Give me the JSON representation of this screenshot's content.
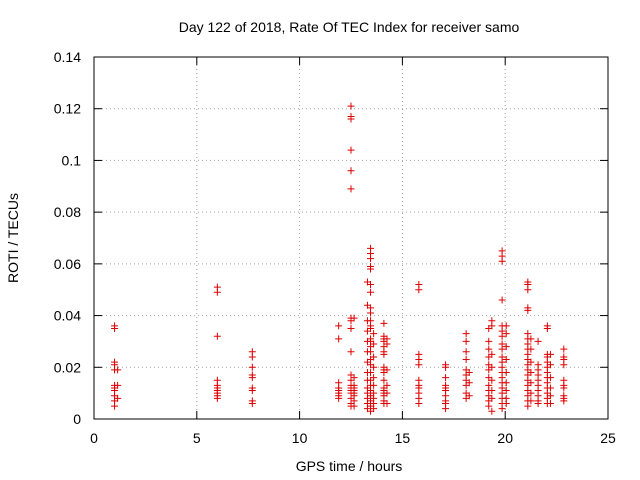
{
  "chart_data": {
    "type": "scatter",
    "title": "Day 122 of 2018, Rate Of TEC Index for receiver samo",
    "xlabel": "GPS time / hours",
    "ylabel": "ROTI / TECUs",
    "xlim": [
      0,
      25
    ],
    "ylim": [
      0,
      0.14
    ],
    "x_ticks": [
      "0",
      "5",
      "10",
      "15",
      "20",
      "25"
    ],
    "y_ticks": [
      "0",
      "0.02",
      "0.04",
      "0.06",
      "0.08",
      "0.1",
      "0.12",
      "0.14"
    ],
    "grid": true,
    "marker": "+",
    "series": [
      {
        "color": "#e00000",
        "points": [
          [
            1.0,
            0.036
          ],
          [
            1.0,
            0.035
          ],
          [
            1.0,
            0.022
          ],
          [
            1.0,
            0.021
          ],
          [
            1.0,
            0.019
          ],
          [
            1.0,
            0.013
          ],
          [
            1.0,
            0.012
          ],
          [
            1.0,
            0.011
          ],
          [
            1.0,
            0.009
          ],
          [
            1.0,
            0.007
          ],
          [
            1.0,
            0.005
          ],
          [
            1.15,
            0.019
          ],
          [
            1.15,
            0.013
          ],
          [
            1.15,
            0.008
          ],
          [
            6.0,
            0.051
          ],
          [
            6.0,
            0.049
          ],
          [
            6.0,
            0.032
          ],
          [
            6.0,
            0.015
          ],
          [
            6.0,
            0.013
          ],
          [
            6.0,
            0.012
          ],
          [
            6.0,
            0.011
          ],
          [
            6.0,
            0.01
          ],
          [
            6.0,
            0.009
          ],
          [
            6.0,
            0.008
          ],
          [
            7.7,
            0.026
          ],
          [
            7.7,
            0.024
          ],
          [
            7.7,
            0.02
          ],
          [
            7.7,
            0.017
          ],
          [
            7.7,
            0.016
          ],
          [
            7.7,
            0.012
          ],
          [
            7.7,
            0.011
          ],
          [
            7.7,
            0.007
          ],
          [
            7.7,
            0.006
          ],
          [
            11.9,
            0.036
          ],
          [
            11.9,
            0.031
          ],
          [
            11.9,
            0.014
          ],
          [
            11.9,
            0.012
          ],
          [
            11.9,
            0.011
          ],
          [
            11.9,
            0.01
          ],
          [
            11.9,
            0.009
          ],
          [
            11.9,
            0.008
          ],
          [
            12.5,
            0.121
          ],
          [
            12.5,
            0.117
          ],
          [
            12.5,
            0.116
          ],
          [
            12.5,
            0.104
          ],
          [
            12.5,
            0.096
          ],
          [
            12.5,
            0.089
          ],
          [
            12.5,
            0.039
          ],
          [
            12.5,
            0.038
          ],
          [
            12.5,
            0.035
          ],
          [
            12.5,
            0.026
          ],
          [
            12.5,
            0.017
          ],
          [
            12.5,
            0.015
          ],
          [
            12.5,
            0.013
          ],
          [
            12.5,
            0.012
          ],
          [
            12.5,
            0.011
          ],
          [
            12.5,
            0.01
          ],
          [
            12.5,
            0.008
          ],
          [
            12.5,
            0.006
          ],
          [
            12.5,
            0.005
          ],
          [
            12.65,
            0.039
          ],
          [
            12.65,
            0.016
          ],
          [
            12.65,
            0.013
          ],
          [
            12.65,
            0.012
          ],
          [
            12.65,
            0.011
          ],
          [
            12.65,
            0.01
          ],
          [
            12.65,
            0.009
          ],
          [
            12.65,
            0.007
          ],
          [
            12.65,
            0.005
          ],
          [
            13.3,
            0.053
          ],
          [
            13.3,
            0.044
          ],
          [
            13.3,
            0.038
          ],
          [
            13.3,
            0.034
          ],
          [
            13.3,
            0.03
          ],
          [
            13.3,
            0.026
          ],
          [
            13.3,
            0.022
          ],
          [
            13.3,
            0.018
          ],
          [
            13.3,
            0.015
          ],
          [
            13.3,
            0.012
          ],
          [
            13.3,
            0.01
          ],
          [
            13.3,
            0.008
          ],
          [
            13.3,
            0.006
          ],
          [
            13.3,
            0.004
          ],
          [
            13.45,
            0.066
          ],
          [
            13.45,
            0.064
          ],
          [
            13.45,
            0.062
          ],
          [
            13.45,
            0.059
          ],
          [
            13.45,
            0.058
          ],
          [
            13.45,
            0.052
          ],
          [
            13.45,
            0.049
          ],
          [
            13.45,
            0.043
          ],
          [
            13.45,
            0.041
          ],
          [
            13.45,
            0.038
          ],
          [
            13.45,
            0.036
          ],
          [
            13.45,
            0.035
          ],
          [
            13.45,
            0.031
          ],
          [
            13.45,
            0.03
          ],
          [
            13.45,
            0.028
          ],
          [
            13.45,
            0.026
          ],
          [
            13.45,
            0.023
          ],
          [
            13.45,
            0.021
          ],
          [
            13.45,
            0.018
          ],
          [
            13.45,
            0.015
          ],
          [
            13.45,
            0.013
          ],
          [
            13.45,
            0.011
          ],
          [
            13.45,
            0.009
          ],
          [
            13.45,
            0.007
          ],
          [
            13.45,
            0.005
          ],
          [
            13.45,
            0.003
          ],
          [
            13.6,
            0.033
          ],
          [
            13.6,
            0.029
          ],
          [
            13.6,
            0.024
          ],
          [
            13.6,
            0.02
          ],
          [
            13.6,
            0.016
          ],
          [
            13.6,
            0.013
          ],
          [
            13.6,
            0.01
          ],
          [
            13.6,
            0.008
          ],
          [
            13.6,
            0.006
          ],
          [
            13.6,
            0.004
          ],
          [
            14.1,
            0.037
          ],
          [
            14.1,
            0.032
          ],
          [
            14.1,
            0.031
          ],
          [
            14.1,
            0.03
          ],
          [
            14.1,
            0.028
          ],
          [
            14.1,
            0.026
          ],
          [
            14.1,
            0.025
          ],
          [
            14.1,
            0.02
          ],
          [
            14.1,
            0.019
          ],
          [
            14.1,
            0.018
          ],
          [
            14.1,
            0.015
          ],
          [
            14.1,
            0.012
          ],
          [
            14.1,
            0.011
          ],
          [
            14.1,
            0.01
          ],
          [
            14.1,
            0.009
          ],
          [
            14.1,
            0.007
          ],
          [
            14.1,
            0.006
          ],
          [
            14.25,
            0.031
          ],
          [
            14.25,
            0.029
          ],
          [
            14.25,
            0.019
          ],
          [
            14.25,
            0.013
          ],
          [
            14.25,
            0.01
          ],
          [
            14.25,
            0.006
          ],
          [
            15.8,
            0.052
          ],
          [
            15.8,
            0.05
          ],
          [
            15.8,
            0.025
          ],
          [
            15.8,
            0.023
          ],
          [
            15.8,
            0.021
          ],
          [
            15.8,
            0.015
          ],
          [
            15.8,
            0.013
          ],
          [
            15.8,
            0.012
          ],
          [
            15.8,
            0.01
          ],
          [
            15.8,
            0.008
          ],
          [
            15.8,
            0.006
          ],
          [
            17.1,
            0.021
          ],
          [
            17.1,
            0.02
          ],
          [
            17.1,
            0.016
          ],
          [
            17.1,
            0.013
          ],
          [
            17.1,
            0.012
          ],
          [
            17.1,
            0.011
          ],
          [
            17.1,
            0.009
          ],
          [
            17.1,
            0.007
          ],
          [
            17.1,
            0.006
          ],
          [
            17.1,
            0.004
          ],
          [
            18.1,
            0.033
          ],
          [
            18.1,
            0.03
          ],
          [
            18.1,
            0.026
          ],
          [
            18.1,
            0.023
          ],
          [
            18.1,
            0.019
          ],
          [
            18.1,
            0.017
          ],
          [
            18.1,
            0.015
          ],
          [
            18.1,
            0.013
          ],
          [
            18.1,
            0.01
          ],
          [
            18.1,
            0.008
          ],
          [
            18.25,
            0.018
          ],
          [
            18.25,
            0.014
          ],
          [
            18.25,
            0.009
          ],
          [
            19.2,
            0.035
          ],
          [
            19.2,
            0.03
          ],
          [
            19.2,
            0.027
          ],
          [
            19.2,
            0.024
          ],
          [
            19.2,
            0.021
          ],
          [
            19.2,
            0.019
          ],
          [
            19.2,
            0.016
          ],
          [
            19.2,
            0.013
          ],
          [
            19.2,
            0.011
          ],
          [
            19.2,
            0.009
          ],
          [
            19.2,
            0.007
          ],
          [
            19.2,
            0.005
          ],
          [
            19.35,
            0.038
          ],
          [
            19.35,
            0.036
          ],
          [
            19.35,
            0.025
          ],
          [
            19.35,
            0.02
          ],
          [
            19.35,
            0.015
          ],
          [
            19.35,
            0.011
          ],
          [
            19.35,
            0.008
          ],
          [
            19.35,
            0.003
          ],
          [
            19.85,
            0.065
          ],
          [
            19.85,
            0.063
          ],
          [
            19.85,
            0.061
          ],
          [
            19.85,
            0.046
          ],
          [
            19.85,
            0.036
          ],
          [
            19.85,
            0.034
          ],
          [
            19.85,
            0.032
          ],
          [
            19.85,
            0.029
          ],
          [
            19.85,
            0.027
          ],
          [
            19.85,
            0.024
          ],
          [
            19.85,
            0.022
          ],
          [
            19.85,
            0.02
          ],
          [
            19.85,
            0.018
          ],
          [
            19.85,
            0.016
          ],
          [
            19.85,
            0.014
          ],
          [
            19.85,
            0.012
          ],
          [
            19.85,
            0.01
          ],
          [
            19.85,
            0.008
          ],
          [
            19.85,
            0.006
          ],
          [
            19.85,
            0.004
          ],
          [
            20.05,
            0.036
          ],
          [
            20.05,
            0.033
          ],
          [
            20.05,
            0.028
          ],
          [
            20.05,
            0.023
          ],
          [
            20.05,
            0.018
          ],
          [
            20.05,
            0.014
          ],
          [
            20.05,
            0.011
          ],
          [
            20.05,
            0.008
          ],
          [
            20.05,
            0.006
          ],
          [
            21.1,
            0.053
          ],
          [
            21.1,
            0.052
          ],
          [
            21.1,
            0.05
          ],
          [
            21.1,
            0.043
          ],
          [
            21.1,
            0.042
          ],
          [
            21.1,
            0.033
          ],
          [
            21.1,
            0.031
          ],
          [
            21.1,
            0.029
          ],
          [
            21.1,
            0.027
          ],
          [
            21.1,
            0.025
          ],
          [
            21.1,
            0.023
          ],
          [
            21.1,
            0.021
          ],
          [
            21.1,
            0.019
          ],
          [
            21.1,
            0.017
          ],
          [
            21.1,
            0.015
          ],
          [
            21.1,
            0.013
          ],
          [
            21.1,
            0.011
          ],
          [
            21.1,
            0.009
          ],
          [
            21.1,
            0.007
          ],
          [
            21.1,
            0.005
          ],
          [
            21.25,
            0.031
          ],
          [
            21.25,
            0.027
          ],
          [
            21.25,
            0.022
          ],
          [
            21.25,
            0.018
          ],
          [
            21.25,
            0.014
          ],
          [
            21.25,
            0.01
          ],
          [
            21.25,
            0.007
          ],
          [
            21.6,
            0.03
          ],
          [
            21.6,
            0.021
          ],
          [
            21.6,
            0.019
          ],
          [
            21.6,
            0.017
          ],
          [
            21.6,
            0.015
          ],
          [
            21.6,
            0.013
          ],
          [
            21.6,
            0.011
          ],
          [
            21.6,
            0.009
          ],
          [
            21.6,
            0.007
          ],
          [
            21.6,
            0.006
          ],
          [
            22.05,
            0.036
          ],
          [
            22.05,
            0.035
          ],
          [
            22.05,
            0.025
          ],
          [
            22.05,
            0.024
          ],
          [
            22.05,
            0.022
          ],
          [
            22.05,
            0.02
          ],
          [
            22.05,
            0.018
          ],
          [
            22.05,
            0.016
          ],
          [
            22.05,
            0.014
          ],
          [
            22.05,
            0.012
          ],
          [
            22.05,
            0.01
          ],
          [
            22.05,
            0.008
          ],
          [
            22.05,
            0.006
          ],
          [
            22.2,
            0.025
          ],
          [
            22.2,
            0.021
          ],
          [
            22.2,
            0.016
          ],
          [
            22.2,
            0.012
          ],
          [
            22.2,
            0.009
          ],
          [
            22.2,
            0.006
          ],
          [
            22.85,
            0.027
          ],
          [
            22.85,
            0.024
          ],
          [
            22.85,
            0.023
          ],
          [
            22.85,
            0.021
          ],
          [
            22.85,
            0.015
          ],
          [
            22.85,
            0.013
          ],
          [
            22.85,
            0.012
          ],
          [
            22.85,
            0.009
          ],
          [
            22.85,
            0.008
          ],
          [
            22.85,
            0.007
          ]
        ]
      }
    ]
  }
}
